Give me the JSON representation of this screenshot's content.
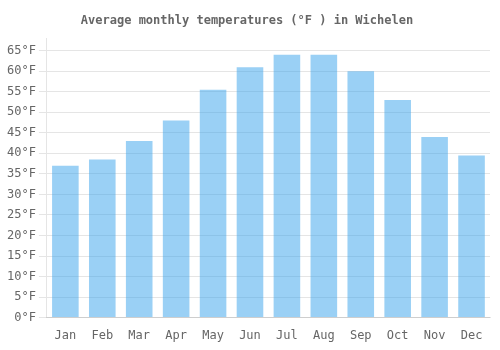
{
  "chart_data": {
    "type": "bar",
    "title": "Average monthly temperatures (°F ) in Wichelen",
    "categories": [
      "Jan",
      "Feb",
      "Mar",
      "Apr",
      "May",
      "Jun",
      "Jul",
      "Aug",
      "Sep",
      "Oct",
      "Nov",
      "Dec"
    ],
    "values": [
      37,
      38.5,
      43,
      48,
      55.5,
      61,
      64,
      64,
      60,
      53,
      44,
      39.5
    ],
    "ylim": [
      0,
      68
    ],
    "yticks": [
      {
        "value": 0,
        "label": "0°F"
      },
      {
        "value": 5,
        "label": "5°F"
      },
      {
        "value": 10,
        "label": "10°F"
      },
      {
        "value": 15,
        "label": "15°F"
      },
      {
        "value": 20,
        "label": "20°F"
      },
      {
        "value": 25,
        "label": "25°F"
      },
      {
        "value": 30,
        "label": "30°F"
      },
      {
        "value": 35,
        "label": "35°F"
      },
      {
        "value": 40,
        "label": "40°F"
      },
      {
        "value": 45,
        "label": "45°F"
      },
      {
        "value": 50,
        "label": "50°F"
      },
      {
        "value": 55,
        "label": "55°F"
      },
      {
        "value": 60,
        "label": "60°F"
      },
      {
        "value": 65,
        "label": "65°F"
      }
    ],
    "grid": true
  }
}
